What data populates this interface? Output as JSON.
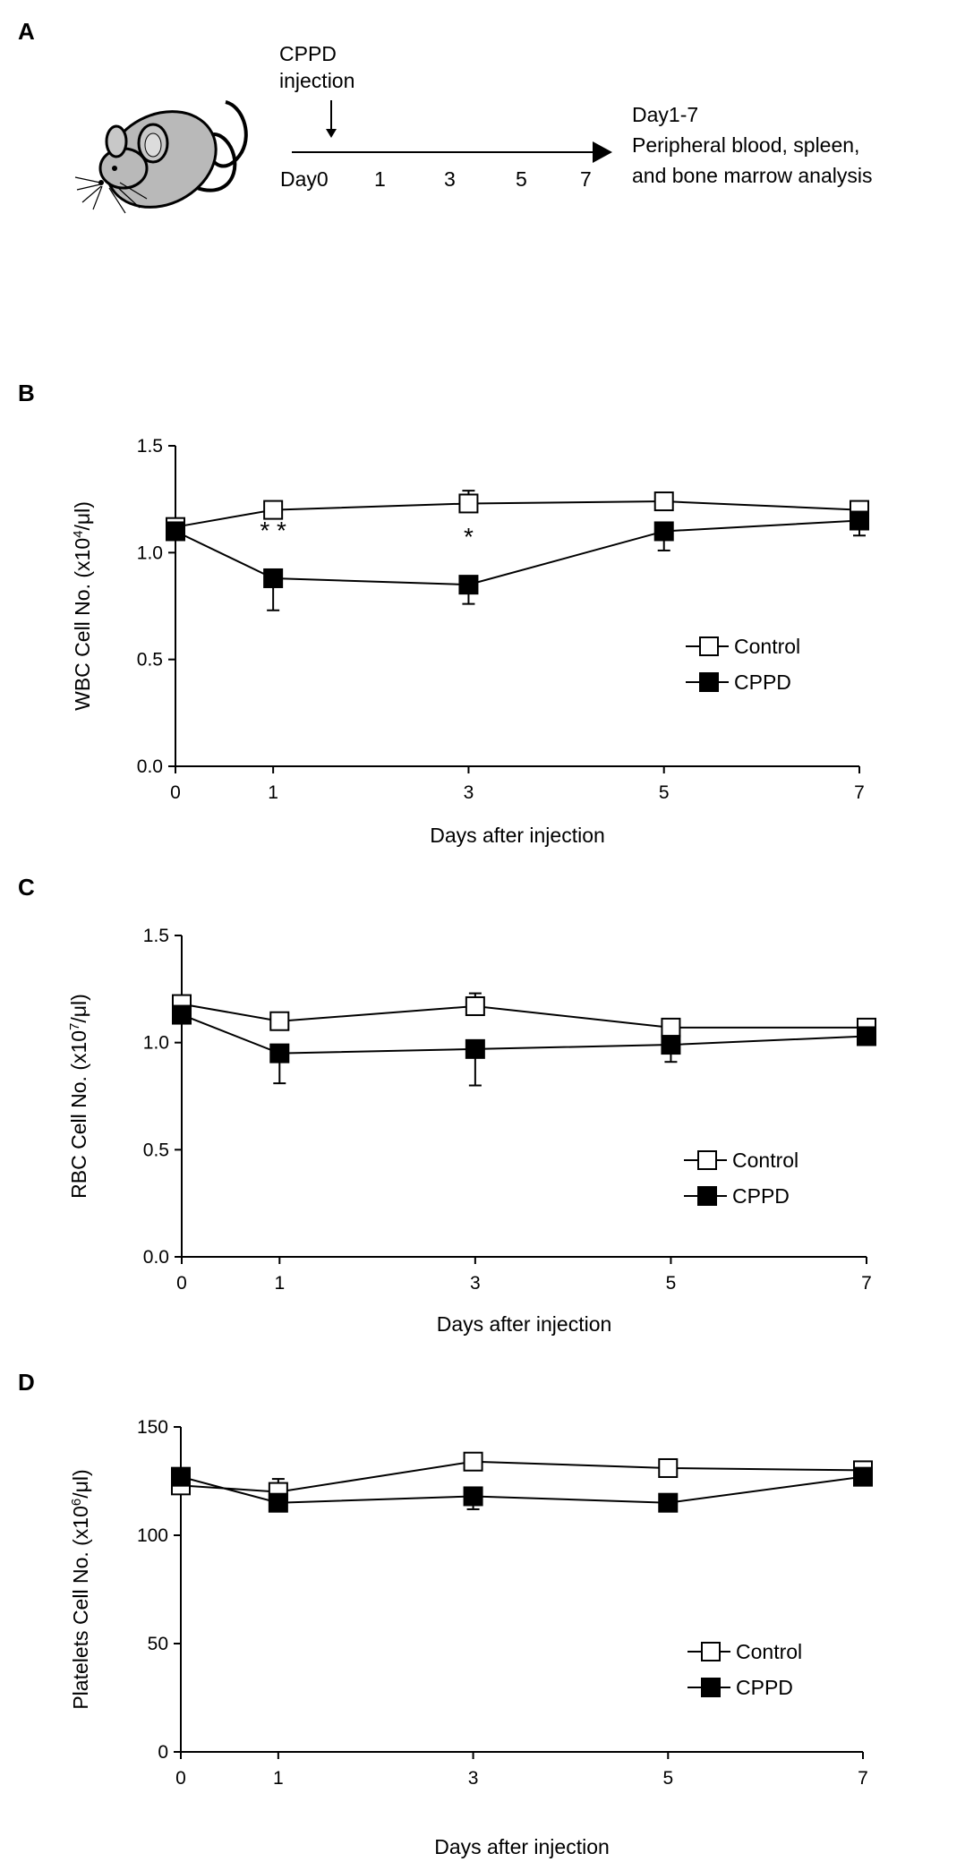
{
  "panels": {
    "A": {
      "label": "A",
      "injection_label_line1": "CPPD",
      "injection_label_line2": "injection",
      "timeline_ticks": [
        "Day0",
        "1",
        "3",
        "5",
        "7"
      ],
      "analysis_line1": "Day1-7",
      "analysis_line2": "Peripheral blood, spleen,",
      "analysis_line3": "and bone marrow analysis"
    }
  },
  "chart_data": [
    {
      "panel": "B",
      "type": "line",
      "x": [
        0,
        1,
        3,
        5,
        7
      ],
      "xticks": [
        "0",
        "1",
        "3",
        "5",
        "7"
      ],
      "xlabel": "Days after injection",
      "ylabel_pre": "WBC Cell No. (x10",
      "ylabel_sup": "4",
      "ylabel_post": "/μl)",
      "ylim": [
        0,
        1.5
      ],
      "yticks": [
        0,
        0.5,
        1.0,
        1.5
      ],
      "ytick_labels": [
        "0.0",
        "0.5",
        "1.0",
        "1.5"
      ],
      "legend": [
        "Control",
        "CPPD"
      ],
      "series": [
        {
          "name": "Control",
          "marker": "open-square",
          "values": [
            1.12,
            1.2,
            1.23,
            1.24,
            1.2
          ],
          "err": [
            0.02,
            0.03,
            0.06,
            0.04,
            0.03
          ]
        },
        {
          "name": "CPPD",
          "marker": "filled-square",
          "values": [
            1.1,
            0.88,
            0.85,
            1.1,
            1.15
          ],
          "err": [
            0.02,
            0.15,
            0.09,
            0.09,
            0.07
          ]
        }
      ],
      "annotations": [
        {
          "x": 1,
          "text": "* *"
        },
        {
          "x": 3,
          "text": "*"
        }
      ]
    },
    {
      "panel": "C",
      "type": "line",
      "x": [
        0,
        1,
        3,
        5,
        7
      ],
      "xticks": [
        "0",
        "1",
        "3",
        "5",
        "7"
      ],
      "xlabel": "Days after injection",
      "ylabel_pre": "RBC Cell No. (x10",
      "ylabel_sup": "7",
      "ylabel_post": "/μl)",
      "ylim": [
        0,
        1.5
      ],
      "yticks": [
        0,
        0.5,
        1.0,
        1.5
      ],
      "ytick_labels": [
        "0.0",
        "0.5",
        "1.0",
        "1.5"
      ],
      "legend": [
        "Control",
        "CPPD"
      ],
      "series": [
        {
          "name": "Control",
          "marker": "open-square",
          "values": [
            1.18,
            1.1,
            1.17,
            1.07,
            1.07
          ],
          "err": [
            0.03,
            0.04,
            0.06,
            0.03,
            0.03
          ]
        },
        {
          "name": "CPPD",
          "marker": "filled-square",
          "values": [
            1.13,
            0.95,
            0.97,
            0.99,
            1.03
          ],
          "err": [
            0.04,
            0.14,
            0.17,
            0.08,
            0.03
          ]
        }
      ],
      "annotations": []
    },
    {
      "panel": "D",
      "type": "line",
      "x": [
        0,
        1,
        3,
        5,
        7
      ],
      "xticks": [
        "0",
        "1",
        "3",
        "5",
        "7"
      ],
      "xlabel": "Days after injection",
      "ylabel_pre": "Platelets Cell No. (x10",
      "ylabel_sup": "6",
      "ylabel_post": "/μl)",
      "ylim": [
        0,
        150
      ],
      "yticks": [
        0,
        50,
        100,
        150
      ],
      "ytick_labels": [
        "0",
        "50",
        "100",
        "150"
      ],
      "legend": [
        "Control",
        "CPPD"
      ],
      "series": [
        {
          "name": "Control",
          "marker": "open-square",
          "values": [
            123,
            120,
            134,
            131,
            130
          ],
          "err": [
            3,
            6,
            3,
            2,
            2
          ]
        },
        {
          "name": "CPPD",
          "marker": "filled-square",
          "values": [
            127,
            115,
            118,
            115,
            127
          ],
          "err": [
            3,
            4,
            6,
            2,
            2
          ]
        }
      ],
      "annotations": []
    }
  ]
}
